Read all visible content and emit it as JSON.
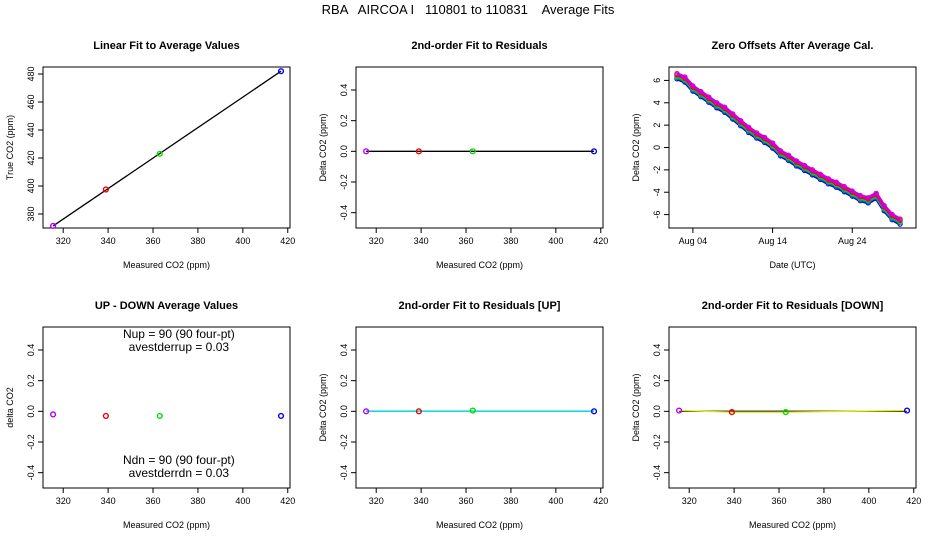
{
  "title": "RBA   AIRCOA I   110801 to 110831    Average Fits",
  "colors": {
    "purple": "#b300ff",
    "red": "#ee0000",
    "green": "#00dd00",
    "blue": "#0000ee",
    "black": "#000000",
    "cyan": "#00e5e5",
    "yellow": "#e5e500",
    "magenta": "#d000d0",
    "teal": "#009090"
  },
  "chart_data": [
    {
      "type": "scatter",
      "title": "Linear Fit to Average Values",
      "xlabel": "Measured CO2 (ppm)",
      "ylabel": "True CO2 (ppm)",
      "xlim": [
        311,
        421
      ],
      "ylim": [
        370,
        485
      ],
      "xticks": [
        320,
        340,
        360,
        380,
        400,
        420
      ],
      "yticks": [
        380,
        400,
        420,
        440,
        460,
        480
      ],
      "points": [
        {
          "x": 315.5,
          "y": 371.5,
          "color": "purple"
        },
        {
          "x": 339.0,
          "y": 397.5,
          "color": "red"
        },
        {
          "x": 363.0,
          "y": 423.0,
          "color": "green"
        },
        {
          "x": 417.0,
          "y": 482.0,
          "color": "blue"
        }
      ],
      "lines": [
        {
          "color": "black",
          "points": [
            [
              315.5,
              371.5
            ],
            [
              417.0,
              482.0
            ]
          ]
        }
      ]
    },
    {
      "type": "scatter",
      "title": "2nd-order Fit to Residuals",
      "xlabel": "Measured CO2 (ppm)",
      "ylabel": "Delta CO2 (ppm)",
      "xlim": [
        311,
        421
      ],
      "ylim": [
        -0.5,
        0.55
      ],
      "xticks": [
        320,
        340,
        360,
        380,
        400,
        420
      ],
      "yticks": [
        -0.4,
        -0.2,
        0.0,
        0.2,
        0.4
      ],
      "ytick_labels": [
        "-0.4",
        "-0.2",
        "0.0",
        "0.2",
        "0.4"
      ],
      "points": [
        {
          "x": 315.5,
          "y": 0.0,
          "color": "purple"
        },
        {
          "x": 339.0,
          "y": 0.0,
          "color": "red"
        },
        {
          "x": 363.0,
          "y": 0.0,
          "color": "green"
        },
        {
          "x": 417.0,
          "y": 0.0,
          "color": "blue"
        }
      ],
      "lines": [
        {
          "color": "black",
          "points": [
            [
              315.5,
              0.0
            ],
            [
              417.0,
              0.0
            ]
          ]
        }
      ]
    },
    {
      "type": "line",
      "title": "Zero Offsets After Average Cal.",
      "xlabel": "Date (UTC)",
      "ylabel": "Delta CO2 (ppm)",
      "xlim": [
        0,
        31
      ],
      "ylim": [
        -7.2,
        7.2
      ],
      "xticks": [
        3,
        13,
        23
      ],
      "xtick_labels": [
        "Aug 04",
        "Aug 14",
        "Aug 24"
      ],
      "yticks": [
        -6,
        -4,
        -2,
        0,
        2,
        4,
        6
      ],
      "series": [
        {
          "color": "blue",
          "offset": -0.25,
          "points": [
            [
              1,
              6.4
            ],
            [
              2,
              6.1
            ],
            [
              3,
              5.3
            ],
            [
              4,
              4.8
            ],
            [
              5,
              4.3
            ],
            [
              6,
              3.8
            ],
            [
              7,
              3.4
            ],
            [
              8,
              2.8
            ],
            [
              9,
              2.2
            ],
            [
              10,
              1.6
            ],
            [
              11,
              1.1
            ],
            [
              12,
              0.7
            ],
            [
              13,
              0.2
            ],
            [
              14,
              -0.5
            ],
            [
              15,
              -0.9
            ],
            [
              16,
              -1.4
            ],
            [
              17,
              -1.8
            ],
            [
              18,
              -2.2
            ],
            [
              19,
              -2.6
            ],
            [
              20,
              -3.0
            ],
            [
              21,
              -3.3
            ],
            [
              22,
              -3.7
            ],
            [
              23,
              -4.1
            ],
            [
              24,
              -4.5
            ],
            [
              25,
              -4.7
            ],
            [
              26,
              -4.3
            ],
            [
              27,
              -5.4
            ],
            [
              28,
              -6.2
            ],
            [
              29,
              -6.6
            ]
          ]
        },
        {
          "color": "teal",
          "offset": -0.12,
          "points": [
            [
              1,
              6.4
            ],
            [
              2,
              6.1
            ],
            [
              3,
              5.3
            ],
            [
              4,
              4.8
            ],
            [
              5,
              4.3
            ],
            [
              6,
              3.8
            ],
            [
              7,
              3.4
            ],
            [
              8,
              2.8
            ],
            [
              9,
              2.2
            ],
            [
              10,
              1.6
            ],
            [
              11,
              1.1
            ],
            [
              12,
              0.7
            ],
            [
              13,
              0.2
            ],
            [
              14,
              -0.5
            ],
            [
              15,
              -0.9
            ],
            [
              16,
              -1.4
            ],
            [
              17,
              -1.8
            ],
            [
              18,
              -2.2
            ],
            [
              19,
              -2.6
            ],
            [
              20,
              -3.0
            ],
            [
              21,
              -3.3
            ],
            [
              22,
              -3.7
            ],
            [
              23,
              -4.1
            ],
            [
              24,
              -4.5
            ],
            [
              25,
              -4.7
            ],
            [
              26,
              -4.3
            ],
            [
              27,
              -5.4
            ],
            [
              28,
              -6.2
            ],
            [
              29,
              -6.6
            ]
          ]
        },
        {
          "color": "green",
          "offset": 0.0,
          "points": [
            [
              1,
              6.4
            ],
            [
              2,
              6.1
            ],
            [
              3,
              5.3
            ],
            [
              4,
              4.8
            ],
            [
              5,
              4.3
            ],
            [
              6,
              3.8
            ],
            [
              7,
              3.4
            ],
            [
              8,
              2.8
            ],
            [
              9,
              2.2
            ],
            [
              10,
              1.6
            ],
            [
              11,
              1.1
            ],
            [
              12,
              0.7
            ],
            [
              13,
              0.2
            ],
            [
              14,
              -0.5
            ],
            [
              15,
              -0.9
            ],
            [
              16,
              -1.4
            ],
            [
              17,
              -1.8
            ],
            [
              18,
              -2.2
            ],
            [
              19,
              -2.6
            ],
            [
              20,
              -3.0
            ],
            [
              21,
              -3.3
            ],
            [
              22,
              -3.7
            ],
            [
              23,
              -4.1
            ],
            [
              24,
              -4.5
            ],
            [
              25,
              -4.7
            ],
            [
              26,
              -4.3
            ],
            [
              27,
              -5.4
            ],
            [
              28,
              -6.2
            ],
            [
              29,
              -6.6
            ]
          ]
        },
        {
          "color": "red",
          "offset": 0.1,
          "points": [
            [
              1,
              6.4
            ],
            [
              2,
              6.1
            ],
            [
              3,
              5.3
            ],
            [
              4,
              4.8
            ],
            [
              5,
              4.3
            ],
            [
              6,
              3.8
            ],
            [
              7,
              3.4
            ],
            [
              8,
              2.8
            ],
            [
              9,
              2.2
            ],
            [
              10,
              1.6
            ],
            [
              11,
              1.1
            ],
            [
              12,
              0.7
            ],
            [
              13,
              0.2
            ],
            [
              14,
              -0.5
            ],
            [
              15,
              -0.9
            ],
            [
              16,
              -1.4
            ],
            [
              17,
              -1.8
            ],
            [
              18,
              -2.2
            ],
            [
              19,
              -2.6
            ],
            [
              20,
              -3.0
            ],
            [
              21,
              -3.3
            ],
            [
              22,
              -3.7
            ],
            [
              23,
              -4.1
            ],
            [
              24,
              -4.5
            ],
            [
              25,
              -4.7
            ],
            [
              26,
              -4.3
            ],
            [
              27,
              -5.4
            ],
            [
              28,
              -6.2
            ],
            [
              29,
              -6.6
            ]
          ]
        },
        {
          "color": "magenta",
          "offset": 0.2,
          "points": [
            [
              1,
              6.4
            ],
            [
              2,
              6.1
            ],
            [
              3,
              5.3
            ],
            [
              4,
              4.8
            ],
            [
              5,
              4.3
            ],
            [
              6,
              3.8
            ],
            [
              7,
              3.4
            ],
            [
              8,
              2.8
            ],
            [
              9,
              2.2
            ],
            [
              10,
              1.6
            ],
            [
              11,
              1.1
            ],
            [
              12,
              0.7
            ],
            [
              13,
              0.2
            ],
            [
              14,
              -0.5
            ],
            [
              15,
              -0.9
            ],
            [
              16,
              -1.4
            ],
            [
              17,
              -1.8
            ],
            [
              18,
              -2.2
            ],
            [
              19,
              -2.6
            ],
            [
              20,
              -3.0
            ],
            [
              21,
              -3.3
            ],
            [
              22,
              -3.7
            ],
            [
              23,
              -4.1
            ],
            [
              24,
              -4.5
            ],
            [
              25,
              -4.7
            ],
            [
              26,
              -4.3
            ],
            [
              27,
              -5.4
            ],
            [
              28,
              -6.2
            ],
            [
              29,
              -6.6
            ]
          ]
        }
      ]
    },
    {
      "type": "scatter",
      "title": "UP - DOWN Average Values",
      "xlabel": "Measured CO2 (ppm)",
      "ylabel": "delta CO2",
      "xlim": [
        311,
        421
      ],
      "ylim": [
        -0.5,
        0.55
      ],
      "xticks": [
        320,
        340,
        360,
        380,
        400,
        420
      ],
      "yticks": [
        -0.4,
        -0.2,
        0.0,
        0.2,
        0.4
      ],
      "ytick_labels": [
        "-0.4",
        "-0.2",
        "0.0",
        "0.2",
        "0.4"
      ],
      "points": [
        {
          "x": 315.5,
          "y": -0.02,
          "color": "purple"
        },
        {
          "x": 339.0,
          "y": -0.03,
          "color": "red"
        },
        {
          "x": 363.0,
          "y": -0.03,
          "color": "green"
        },
        {
          "x": 417.0,
          "y": -0.03,
          "color": "blue"
        }
      ],
      "lines": [],
      "annotations": {
        "nup": "Nup = 90 (90 four-pt)",
        "avestderrup": "avestderrup =  0.03",
        "ndn": "Ndn = 90 (90 four-pt)",
        "avestderrdn": "avestderrdn =  0.03"
      }
    },
    {
      "type": "scatter",
      "title": "2nd-order Fit to Residuals [UP]",
      "xlabel": "Measured CO2 (ppm)",
      "ylabel": "Delta CO2 (ppm)",
      "xlim": [
        311,
        421
      ],
      "ylim": [
        -0.5,
        0.55
      ],
      "xticks": [
        320,
        340,
        360,
        380,
        400,
        420
      ],
      "yticks": [
        -0.4,
        -0.2,
        0.0,
        0.2,
        0.4
      ],
      "ytick_labels": [
        "-0.4",
        "-0.2",
        "0.0",
        "0.2",
        "0.4"
      ],
      "points": [
        {
          "x": 315.5,
          "y": 0.0,
          "color": "purple"
        },
        {
          "x": 339.0,
          "y": 0.0,
          "color": "red"
        },
        {
          "x": 363.0,
          "y": 0.005,
          "color": "green"
        },
        {
          "x": 417.0,
          "y": 0.0,
          "color": "blue"
        }
      ],
      "lines": [
        {
          "color": "black",
          "points": [
            [
              315.5,
              0.0
            ],
            [
              417.0,
              0.0
            ]
          ]
        },
        {
          "color": "cyan",
          "points": [
            [
              315.5,
              0.0
            ],
            [
              417.0,
              0.0
            ]
          ]
        }
      ]
    },
    {
      "type": "scatter",
      "title": "2nd-order Fit to Residuals [DOWN]",
      "xlabel": "Measured CO2 (ppm)",
      "ylabel": "Delta CO2 (ppm)",
      "xlim": [
        311,
        421
      ],
      "ylim": [
        -0.5,
        0.55
      ],
      "xticks": [
        320,
        340,
        360,
        380,
        400,
        420
      ],
      "yticks": [
        -0.4,
        -0.2,
        0.0,
        0.2,
        0.4
      ],
      "ytick_labels": [
        "-0.4",
        "-0.2",
        "0.0",
        "0.2",
        "0.4"
      ],
      "points": [
        {
          "x": 315.5,
          "y": 0.005,
          "color": "purple"
        },
        {
          "x": 339.0,
          "y": -0.005,
          "color": "red"
        },
        {
          "x": 363.0,
          "y": -0.005,
          "color": "green"
        },
        {
          "x": 417.0,
          "y": 0.005,
          "color": "blue"
        }
      ],
      "lines": [
        {
          "color": "black",
          "points": [
            [
              315.5,
              0.0
            ],
            [
              417.0,
              0.0
            ]
          ]
        },
        {
          "color": "yellow",
          "points": [
            [
              315.5,
              0.005
            ],
            [
              339.0,
              -0.005
            ],
            [
              363.0,
              -0.005
            ],
            [
              417.0,
              0.005
            ]
          ]
        }
      ]
    }
  ]
}
